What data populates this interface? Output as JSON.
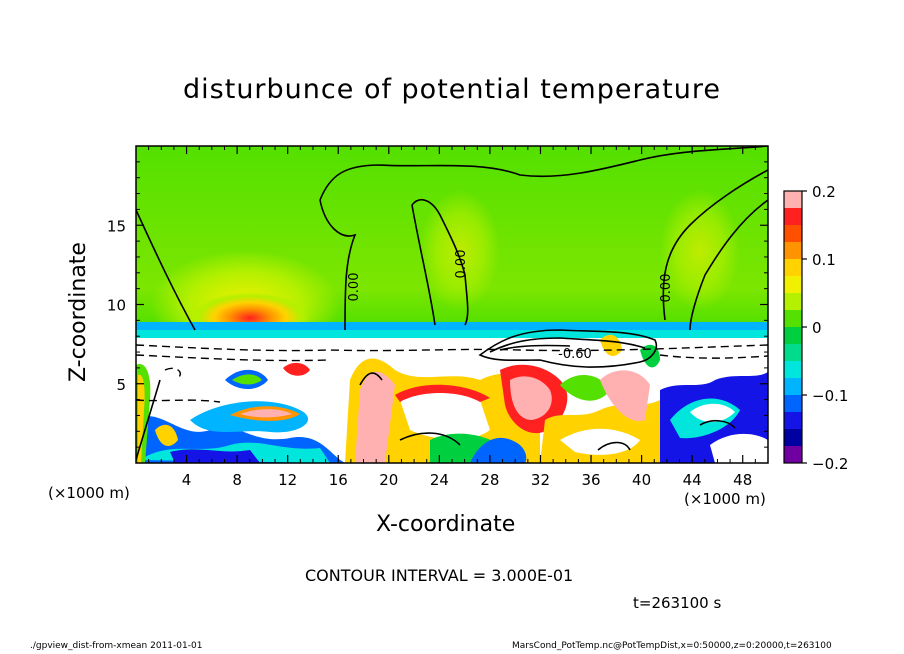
{
  "chart_data": {
    "type": "heatmap",
    "title": "disturbunce of potential temperature",
    "xlabel": "X-coordinate",
    "ylabel": "Z-coordinate",
    "x_unit_label": "(×1000 m)",
    "xlim": [
      0,
      50
    ],
    "ylim": [
      0,
      20
    ],
    "x_ticks": [
      "4",
      "8",
      "12",
      "16",
      "20",
      "24",
      "28",
      "32",
      "36",
      "40",
      "44",
      "48"
    ],
    "x_tick_values": [
      4,
      8,
      12,
      16,
      20,
      24,
      28,
      32,
      36,
      40,
      44,
      48
    ],
    "y_ticks": [
      "5",
      "10",
      "15"
    ],
    "y_tick_values": [
      5,
      10,
      15
    ],
    "colorbar": {
      "range": [
        -0.2,
        0.2
      ],
      "tick_labels": [
        "0.2",
        "0.1",
        "0",
        "−0.1",
        "−0.2"
      ],
      "tick_values": [
        0.2,
        0.1,
        0,
        -0.1,
        -0.2
      ],
      "colors_top_to_bottom": [
        "#ffb0b0",
        "#ff2020",
        "#ff5000",
        "#ff9400",
        "#ffd200",
        "#f0f000",
        "#b4f000",
        "#54e000",
        "#00d040",
        "#00dc8c",
        "#00e6dc",
        "#00b4ff",
        "#0064ff",
        "#1414e6",
        "#0000a0",
        "#7000a0"
      ]
    },
    "contour_labels": [
      "0.00",
      "0.00",
      "0.00",
      "-0.60"
    ],
    "contour_interval": "CONTOUR INTERVAL = 3.000E-01",
    "time": "t=263100 s",
    "footer_left": "./gpview_dist-from-xmean   2011-01-01",
    "footer_right": "MarsCond_PotTemp.nc@PotTempDist,x=0:50000,z=0:20000,t=263100"
  }
}
